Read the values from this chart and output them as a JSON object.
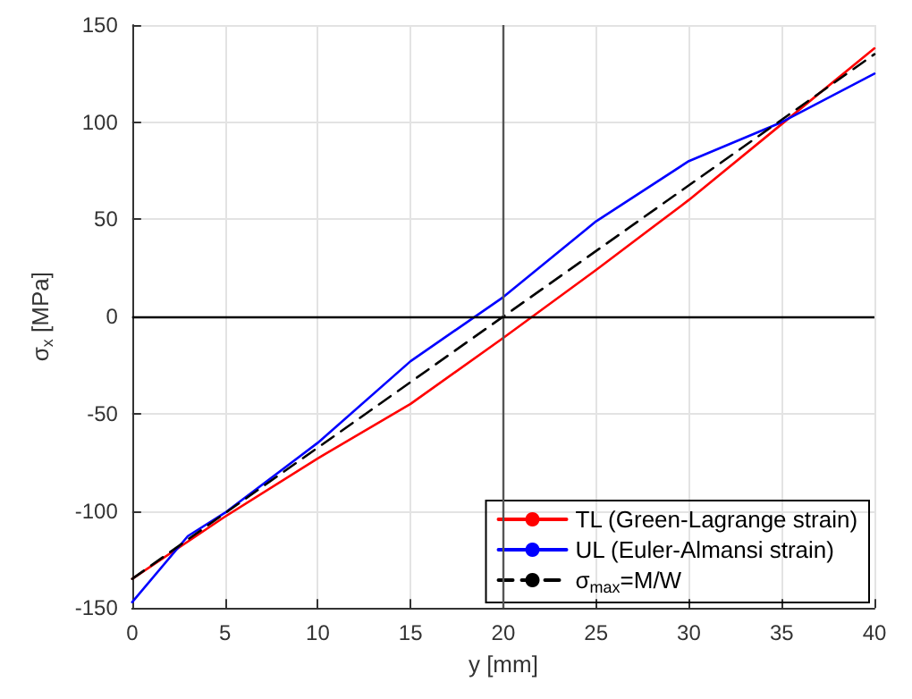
{
  "chart_data": {
    "type": "line",
    "xlabel": "y [mm]",
    "ylabel": "σ$_{x}$ [MPa]",
    "xlim": [
      0,
      40
    ],
    "xticks": [
      0,
      5,
      10,
      15,
      20,
      25,
      30,
      35,
      40
    ],
    "ylim": [
      -150,
      150
    ],
    "yticks": [
      -150,
      -100,
      -50,
      0,
      50,
      100,
      150
    ],
    "grid": true,
    "legend": "bottom right",
    "marker": "none",
    "ref_lines": [
      {
        "axis": "x",
        "value": 20,
        "color": "#555555"
      },
      {
        "axis": "y",
        "value": 0,
        "color": "#000000"
      }
    ],
    "series": [
      {
        "name": "TL (Green-Lagrange strain)",
        "color": "#ff0000",
        "line_style": "solid",
        "x": [
          0,
          5,
          10,
          15,
          20,
          25,
          30,
          35,
          40
        ],
        "values": [
          -135,
          -103,
          -73,
          -45,
          -11,
          24,
          60,
          99,
          138
        ]
      },
      {
        "name": "UL (Euler-Almansi strain)",
        "color": "#0000ff",
        "line_style": "solid",
        "x": [
          0,
          3,
          5,
          10,
          15,
          20,
          25,
          30,
          35,
          40
        ],
        "values": [
          -147,
          -113,
          -101,
          -65,
          -23,
          10,
          49,
          80,
          100,
          125
        ]
      },
      {
        "name": "σ$_{max}$=M/W",
        "color": "#000000",
        "line_style": "dashed",
        "x": [
          0,
          40
        ],
        "values": [
          -135,
          135
        ]
      }
    ]
  }
}
